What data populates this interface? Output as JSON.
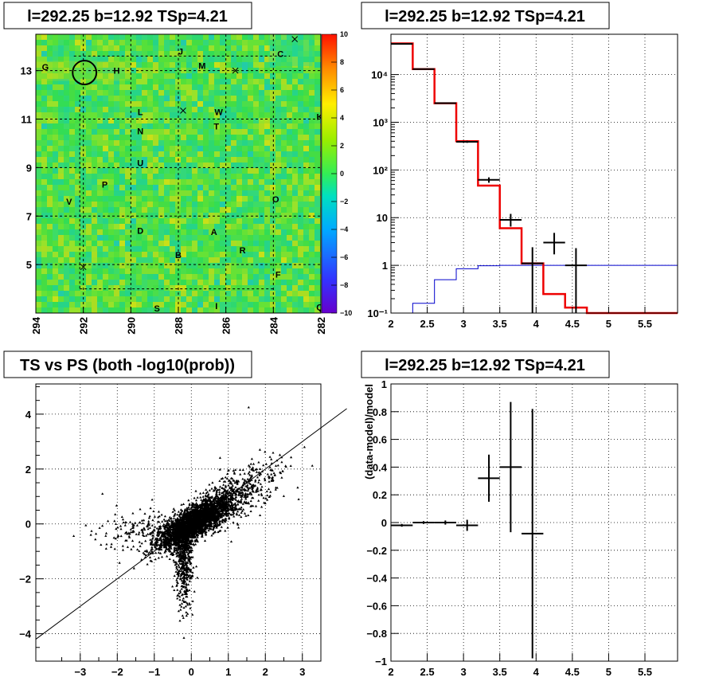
{
  "chart_data": [
    {
      "id": "skymap",
      "type": "heatmap",
      "title": "l=292.25 b=12.92 TSp=4.21",
      "x_ticks": [
        "294",
        "292",
        "290",
        "288",
        "286",
        "284",
        "282"
      ],
      "y_ticks": [
        "5",
        "7",
        "9",
        "11",
        "13"
      ],
      "y_tick_values": [
        5,
        7,
        9,
        11,
        13
      ],
      "xlim": [
        294,
        282
      ],
      "ylim": [
        3,
        14.5
      ],
      "colorbar_ticks": [
        "10",
        "8",
        "6",
        "4",
        "2",
        "0",
        "−2",
        "−4",
        "−6",
        "−8",
        "−10"
      ],
      "colorbar_range": [
        -10,
        10
      ],
      "grid": true,
      "source_labels": [
        {
          "text": "J",
          "l": 287.9,
          "b": 13.8
        },
        {
          "text": "C",
          "l": 283.7,
          "b": 13.7
        },
        {
          "text": "M",
          "l": 287.0,
          "b": 13.2
        },
        {
          "text": "H",
          "l": 290.6,
          "b": 13.0
        },
        {
          "text": "G",
          "l": 293.6,
          "b": 13.15
        },
        {
          "text": "L",
          "l": 289.6,
          "b": 11.3
        },
        {
          "text": "W",
          "l": 286.3,
          "b": 11.3
        },
        {
          "text": "K",
          "l": 282.05,
          "b": 11.1
        },
        {
          "text": "T",
          "l": 286.4,
          "b": 10.7
        },
        {
          "text": "N",
          "l": 289.6,
          "b": 10.5
        },
        {
          "text": "U",
          "l": 289.6,
          "b": 9.2
        },
        {
          "text": "P",
          "l": 291.1,
          "b": 8.3
        },
        {
          "text": "V",
          "l": 292.6,
          "b": 7.6
        },
        {
          "text": "O",
          "l": 283.9,
          "b": 7.7
        },
        {
          "text": "D",
          "l": 289.6,
          "b": 6.4
        },
        {
          "text": "A",
          "l": 286.5,
          "b": 6.35
        },
        {
          "text": "R",
          "l": 285.3,
          "b": 5.6
        },
        {
          "text": "B",
          "l": 288.0,
          "b": 5.4
        },
        {
          "text": "F",
          "l": 283.8,
          "b": 4.6
        },
        {
          "text": "S",
          "l": 288.9,
          "b": 3.2
        },
        {
          "text": "I",
          "l": 286.4,
          "b": 3.3
        },
        {
          "text": "Q",
          "l": 282.05,
          "b": 3.25
        }
      ],
      "markers_x": [
        {
          "l": 283.1,
          "b": 14.3
        },
        {
          "l": 285.6,
          "b": 13.0
        },
        {
          "l": 287.8,
          "b": 11.35
        },
        {
          "l": 292.0,
          "b": 4.9
        }
      ],
      "circle": {
        "l": 291.95,
        "b": 12.92,
        "radius_deg": 0.5
      }
    },
    {
      "id": "spectrum",
      "type": "line",
      "title": "l=292.25 b=12.92 TSp=4.21",
      "x_ticks": [
        "2",
        "2.5",
        "3",
        "3.5",
        "4",
        "4.5",
        "5",
        "5.5"
      ],
      "xlim": [
        2,
        5.95
      ],
      "y_scale": "log",
      "y_ticks": [
        "10⁻¹",
        "1",
        "10",
        "10²",
        "10³",
        "10⁴"
      ],
      "ylim": [
        0.1,
        70000
      ],
      "model_red": {
        "edges": [
          2,
          2.3,
          2.6,
          2.9,
          3.2,
          3.5,
          3.8,
          4.1,
          4.4,
          4.7,
          5.95
        ],
        "values": [
          45000,
          13000,
          2500,
          400,
          47,
          6,
          1.1,
          0.25,
          0.13,
          0.1
        ]
      },
      "model_blue": {
        "edges": [
          2,
          2.3,
          2.6,
          2.9,
          3.2,
          3.5,
          3.8,
          4.1,
          4.4,
          4.7,
          5.95
        ],
        "values": [
          0.1,
          0.16,
          0.5,
          0.85,
          0.98,
          1.0,
          1.0,
          1.0,
          1.0,
          1.0
        ]
      },
      "data_points": [
        {
          "x": 2.15,
          "y": 44000,
          "xerr": 0.15,
          "ylo": 43000,
          "yhi": 45000
        },
        {
          "x": 2.45,
          "y": 13000,
          "xerr": 0.15,
          "ylo": 12700,
          "yhi": 13300
        },
        {
          "x": 2.75,
          "y": 2520,
          "xerr": 0.15,
          "ylo": 2450,
          "yhi": 2600
        },
        {
          "x": 3.05,
          "y": 390,
          "xerr": 0.15,
          "ylo": 370,
          "yhi": 410
        },
        {
          "x": 3.35,
          "y": 62,
          "xerr": 0.15,
          "ylo": 54,
          "yhi": 70
        },
        {
          "x": 3.65,
          "y": 9,
          "xerr": 0.15,
          "ylo": 6.5,
          "yhi": 12
        },
        {
          "x": 3.95,
          "y": 1.1,
          "xerr": 0.15,
          "ylo": 0.1,
          "yhi": 2.4
        },
        {
          "x": 4.25,
          "y": 3,
          "xerr": 0.15,
          "ylo": 1.7,
          "yhi": 4.8
        },
        {
          "x": 4.55,
          "y": 1.0,
          "xerr": 0.15,
          "ylo": 0.1,
          "yhi": 2.3
        }
      ],
      "grid": true
    },
    {
      "id": "ts_vs_ps",
      "type": "scatter",
      "title": "TS vs PS (both -log10(prob))",
      "x_ticks": [
        "−3",
        "−2",
        "−1",
        "0",
        "1",
        "2",
        "3"
      ],
      "x_tick_values": [
        -3,
        -2,
        -1,
        0,
        1,
        2,
        3
      ],
      "y_ticks": [
        "−4",
        "−2",
        "0",
        "2",
        "4"
      ],
      "y_tick_values": [
        -4,
        -2,
        0,
        2,
        4
      ],
      "xlim": [
        -4.2,
        3.5
      ],
      "ylim": [
        -5,
        5.1
      ],
      "line": [
        [
          -4.2,
          -4.2
        ],
        [
          4.2,
          4.2
        ]
      ],
      "grid": true
    },
    {
      "id": "residuals",
      "type": "scatter",
      "title": "l=292.25 b=12.92 TSp=4.21",
      "ylabel": "(data-model)/model",
      "x_ticks": [
        "2",
        "2.5",
        "3",
        "3.5",
        "4",
        "4.5",
        "5",
        "5.5"
      ],
      "xlim": [
        2,
        5.95
      ],
      "y_ticks": [
        "−1",
        "−0.8",
        "−0.6",
        "−0.4",
        "−0.2",
        "0",
        "0.2",
        "0.4",
        "0.6",
        "0.8",
        "1"
      ],
      "y_tick_values": [
        -1,
        -0.8,
        -0.6,
        -0.4,
        -0.2,
        0,
        0.2,
        0.4,
        0.6,
        0.8,
        1
      ],
      "ylim": [
        -1,
        1
      ],
      "points": [
        {
          "x": 2.15,
          "y": -0.02,
          "xerr": 0.15,
          "yerr": 0.01
        },
        {
          "x": 2.45,
          "y": 0.0,
          "xerr": 0.15,
          "yerr": 0.01
        },
        {
          "x": 2.75,
          "y": 0.0,
          "xerr": 0.15,
          "yerr": 0.015
        },
        {
          "x": 3.05,
          "y": -0.02,
          "xerr": 0.15,
          "yerr": 0.04
        },
        {
          "x": 3.35,
          "y": 0.32,
          "xerr": 0.15,
          "yerr": 0.17
        },
        {
          "x": 3.65,
          "y": 0.4,
          "xerr": 0.15,
          "yerr": 0.47
        },
        {
          "x": 3.95,
          "y": -0.08,
          "xerr": 0.15,
          "yerr": 0.9
        }
      ],
      "grid": true
    }
  ]
}
